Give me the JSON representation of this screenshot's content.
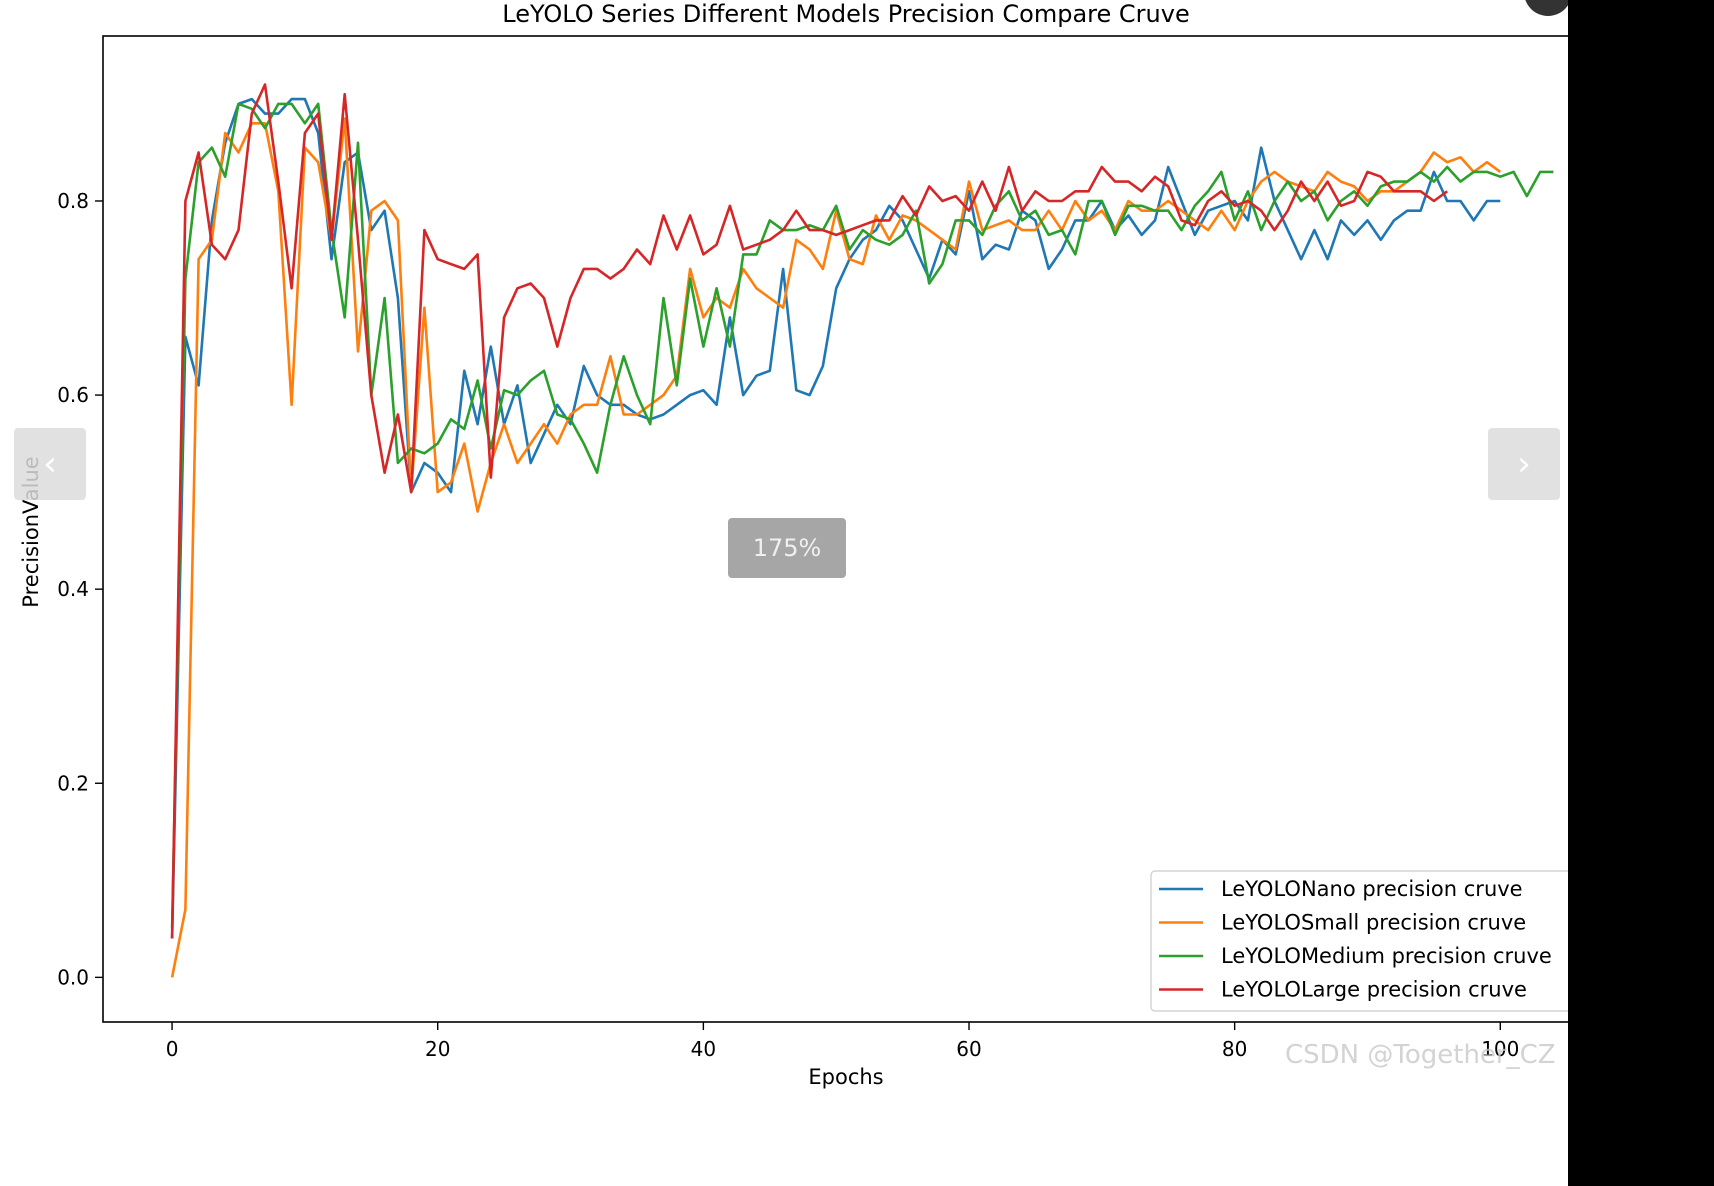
{
  "viewer": {
    "zoom_label": "175%",
    "prev_icon": "chevron-left-icon",
    "next_icon": "chevron-right-icon",
    "watermark": "CSDN @Together_CZ"
  },
  "chart_data": {
    "type": "line",
    "title": "LeYOLO Series Different Models Precision Compare Cruve",
    "xlabel": "Epochs",
    "ylabel": "PrecisionValue",
    "xlim": [
      -5.2,
      106
    ],
    "ylim": [
      -0.046,
      0.97
    ],
    "xticks": [
      0,
      20,
      40,
      60,
      80,
      100
    ],
    "yticks": [
      0.0,
      0.2,
      0.4,
      0.6,
      0.8
    ],
    "grid": false,
    "legend_position": "lower-right",
    "series": [
      {
        "name": "LeYOLONano precision cruve",
        "color": "#1f77b4",
        "x_start": 0,
        "values": [
          0.04,
          0.66,
          0.61,
          0.78,
          0.86,
          0.9,
          0.905,
          0.89,
          0.89,
          0.905,
          0.905,
          0.87,
          0.74,
          0.84,
          0.85,
          0.77,
          0.79,
          0.7,
          0.5,
          0.53,
          0.52,
          0.5,
          0.625,
          0.57,
          0.65,
          0.57,
          0.61,
          0.53,
          0.56,
          0.59,
          0.57,
          0.63,
          0.6,
          0.59,
          0.59,
          0.58,
          0.575,
          0.58,
          0.59,
          0.6,
          0.605,
          0.59,
          0.68,
          0.6,
          0.62,
          0.625,
          0.73,
          0.605,
          0.6,
          0.63,
          0.71,
          0.74,
          0.76,
          0.77,
          0.795,
          0.78,
          0.75,
          0.72,
          0.76,
          0.745,
          0.81,
          0.74,
          0.755,
          0.75,
          0.79,
          0.78,
          0.73,
          0.75,
          0.78,
          0.78,
          0.8,
          0.77,
          0.785,
          0.765,
          0.78,
          0.835,
          0.8,
          0.765,
          0.79,
          0.795,
          0.8,
          0.78,
          0.855,
          0.8,
          0.77,
          0.74,
          0.77,
          0.74,
          0.78,
          0.765,
          0.78,
          0.76,
          0.78,
          0.79,
          0.79,
          0.83,
          0.8,
          0.8,
          0.78,
          0.8,
          0.8
        ]
      },
      {
        "name": "LeYOLOSmall precision cruve",
        "color": "#ff7f0e",
        "x_start": 0,
        "values": [
          0.0,
          0.07,
          0.74,
          0.76,
          0.87,
          0.85,
          0.88,
          0.88,
          0.81,
          0.59,
          0.855,
          0.84,
          0.76,
          0.885,
          0.645,
          0.79,
          0.8,
          0.78,
          0.5,
          0.69,
          0.5,
          0.51,
          0.55,
          0.48,
          0.53,
          0.57,
          0.53,
          0.55,
          0.57,
          0.55,
          0.58,
          0.59,
          0.59,
          0.64,
          0.58,
          0.58,
          0.59,
          0.6,
          0.62,
          0.73,
          0.68,
          0.7,
          0.69,
          0.73,
          0.71,
          0.7,
          0.69,
          0.76,
          0.75,
          0.73,
          0.79,
          0.74,
          0.735,
          0.785,
          0.76,
          0.785,
          0.78,
          0.77,
          0.76,
          0.75,
          0.82,
          0.77,
          0.775,
          0.78,
          0.77,
          0.77,
          0.79,
          0.77,
          0.8,
          0.78,
          0.79,
          0.77,
          0.8,
          0.79,
          0.79,
          0.8,
          0.79,
          0.78,
          0.77,
          0.79,
          0.77,
          0.8,
          0.82,
          0.83,
          0.82,
          0.815,
          0.81,
          0.83,
          0.82,
          0.815,
          0.8,
          0.81,
          0.81,
          0.82,
          0.83,
          0.85,
          0.84,
          0.845,
          0.83,
          0.84,
          0.83
        ]
      },
      {
        "name": "LeYOLOMedium precision cruve",
        "color": "#2ca02c",
        "x_start": 0,
        "values": [
          0.05,
          0.72,
          0.84,
          0.855,
          0.825,
          0.9,
          0.895,
          0.875,
          0.9,
          0.9,
          0.88,
          0.9,
          0.77,
          0.68,
          0.86,
          0.6,
          0.7,
          0.53,
          0.545,
          0.54,
          0.55,
          0.575,
          0.565,
          0.615,
          0.545,
          0.605,
          0.6,
          0.615,
          0.625,
          0.58,
          0.575,
          0.55,
          0.52,
          0.59,
          0.64,
          0.6,
          0.57,
          0.7,
          0.61,
          0.72,
          0.65,
          0.71,
          0.65,
          0.745,
          0.745,
          0.78,
          0.77,
          0.77,
          0.775,
          0.77,
          0.795,
          0.75,
          0.77,
          0.76,
          0.755,
          0.765,
          0.79,
          0.715,
          0.735,
          0.78,
          0.78,
          0.765,
          0.795,
          0.81,
          0.78,
          0.79,
          0.765,
          0.77,
          0.745,
          0.8,
          0.8,
          0.765,
          0.795,
          0.795,
          0.79,
          0.79,
          0.77,
          0.795,
          0.81,
          0.83,
          0.78,
          0.81,
          0.77,
          0.8,
          0.82,
          0.8,
          0.81,
          0.78,
          0.8,
          0.81,
          0.795,
          0.815,
          0.82,
          0.82,
          0.83,
          0.82,
          0.835,
          0.82,
          0.83,
          0.83,
          0.825,
          0.83,
          0.805,
          0.83,
          0.83
        ]
      },
      {
        "name": "LeYOLOLarge precision cruve",
        "color": "#d62728",
        "x_start": 0,
        "values": [
          0.04,
          0.8,
          0.85,
          0.755,
          0.74,
          0.77,
          0.89,
          0.92,
          0.82,
          0.71,
          0.87,
          0.89,
          0.76,
          0.91,
          0.76,
          0.6,
          0.52,
          0.58,
          0.5,
          0.77,
          0.74,
          0.735,
          0.73,
          0.745,
          0.515,
          0.68,
          0.71,
          0.715,
          0.7,
          0.65,
          0.7,
          0.73,
          0.73,
          0.72,
          0.73,
          0.75,
          0.735,
          0.785,
          0.75,
          0.785,
          0.745,
          0.755,
          0.795,
          0.75,
          0.755,
          0.76,
          0.77,
          0.79,
          0.77,
          0.77,
          0.765,
          0.77,
          0.775,
          0.78,
          0.78,
          0.805,
          0.785,
          0.815,
          0.8,
          0.805,
          0.79,
          0.82,
          0.79,
          0.835,
          0.79,
          0.81,
          0.8,
          0.8,
          0.81,
          0.81,
          0.835,
          0.82,
          0.82,
          0.81,
          0.825,
          0.815,
          0.78,
          0.775,
          0.8,
          0.81,
          0.795,
          0.8,
          0.79,
          0.77,
          0.79,
          0.82,
          0.8,
          0.82,
          0.795,
          0.8,
          0.83,
          0.825,
          0.81,
          0.81,
          0.81,
          0.8,
          0.81
        ]
      }
    ]
  }
}
